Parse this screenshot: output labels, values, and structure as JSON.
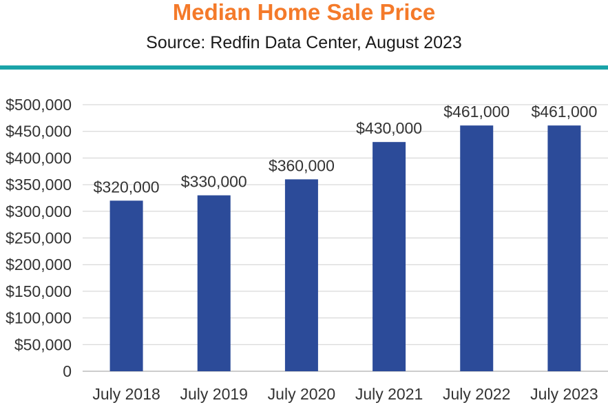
{
  "header": {
    "title": "Median Home Sale Price",
    "subtitle": "Source: Redfin Data Center, August 2023"
  },
  "colors": {
    "title": "#f47a2a",
    "rule": "#1aa3a8",
    "bar": "#2c4b99",
    "grid": "#cfcfcf",
    "axis_text": "#333333"
  },
  "chart_data": {
    "type": "bar",
    "categories": [
      "July 2018",
      "July 2019",
      "July 2020",
      "July 2021",
      "July 2022",
      "July 2023"
    ],
    "values": [
      320000,
      330000,
      360000,
      430000,
      461000,
      461000
    ],
    "data_labels": [
      "$320,000",
      "$330,000",
      "$360,000",
      "$430,000",
      "$461,000",
      "$461,000"
    ],
    "ylim": [
      0,
      500000
    ],
    "yticks": [
      0,
      50000,
      100000,
      150000,
      200000,
      250000,
      300000,
      350000,
      400000,
      450000,
      500000
    ],
    "ytick_labels": [
      "0",
      "$50,000",
      "$100,000",
      "$150,000",
      "$200,000",
      "$250,000",
      "$300,000",
      "$350,000",
      "$400,000",
      "$450,000",
      "$500,000"
    ],
    "grid": true,
    "legend": "none"
  }
}
